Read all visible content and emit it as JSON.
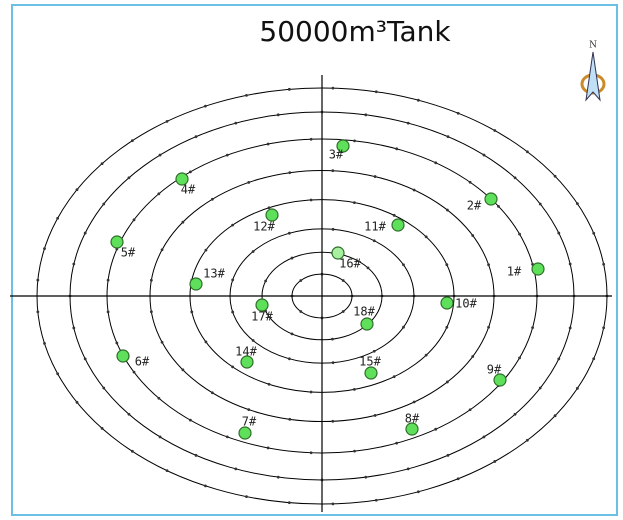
{
  "title": "50000m³Tank",
  "compass": {
    "label": "N"
  },
  "nodes": [
    {
      "label": "1#"
    },
    {
      "label": "2#"
    },
    {
      "label": "3#"
    },
    {
      "label": "4#"
    },
    {
      "label": "5#"
    },
    {
      "label": "6#"
    },
    {
      "label": "7#"
    },
    {
      "label": "8#"
    },
    {
      "label": "9#"
    },
    {
      "label": "10#"
    },
    {
      "label": "11#"
    },
    {
      "label": "12#"
    },
    {
      "label": "13#"
    },
    {
      "label": "14#"
    },
    {
      "label": "15#"
    },
    {
      "label": "16#"
    },
    {
      "label": "17#"
    },
    {
      "label": "18#"
    }
  ]
}
